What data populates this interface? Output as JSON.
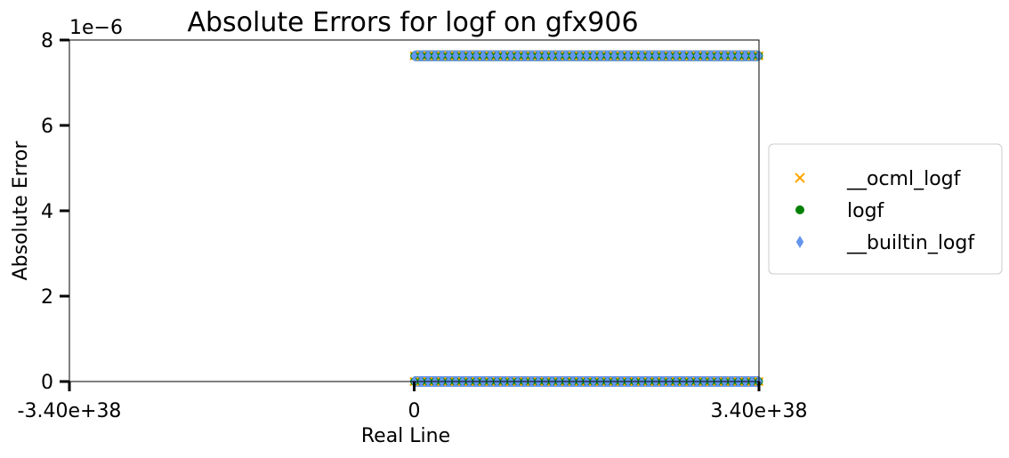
{
  "chart_data": {
    "type": "scatter",
    "title": "Absolute Errors for logf on gfx906",
    "xlabel": "Real Line",
    "ylabel": "Absolute Error",
    "y_multiplier": "1e−6",
    "xlim": [
      -3.4e+38,
      3.4e+38
    ],
    "ylim": [
      0,
      8e-06
    ],
    "x_ticks": [
      {
        "value": -3.4e+38,
        "label": "-3.40e+38"
      },
      {
        "value": 0,
        "label": "0"
      },
      {
        "value": 3.4e+38,
        "label": "3.40e+38"
      }
    ],
    "y_ticks": [
      {
        "value": 0,
        "label": "0"
      },
      {
        "value": 2e-06,
        "label": "2"
      },
      {
        "value": 4e-06,
        "label": "4"
      },
      {
        "value": 6e-06,
        "label": "6"
      },
      {
        "value": 8e-06,
        "label": "8"
      }
    ],
    "grid": false,
    "legend_position": "center-right-outside",
    "series": [
      {
        "name": "__ocml_logf",
        "marker": "x",
        "color": "#ffa500",
        "bands": [
          {
            "x_range": [
              0,
              3.4e+38
            ],
            "y": 7.63e-06
          },
          {
            "x_range": [
              0,
              3.4e+38
            ],
            "y": 0
          }
        ]
      },
      {
        "name": "logf",
        "marker": "circle",
        "color": "#008000",
        "bands": [
          {
            "x_range": [
              0,
              3.4e+38
            ],
            "y": 7.63e-06
          },
          {
            "x_range": [
              0,
              3.4e+38
            ],
            "y": 0
          }
        ]
      },
      {
        "name": "__builtin_logf",
        "marker": "diamond",
        "color": "#6495ed",
        "bands": [
          {
            "x_range": [
              0,
              3.4e+38
            ],
            "y": 7.63e-06
          },
          {
            "x_range": [
              0,
              3.4e+38
            ],
            "y": 0
          }
        ]
      }
    ]
  }
}
